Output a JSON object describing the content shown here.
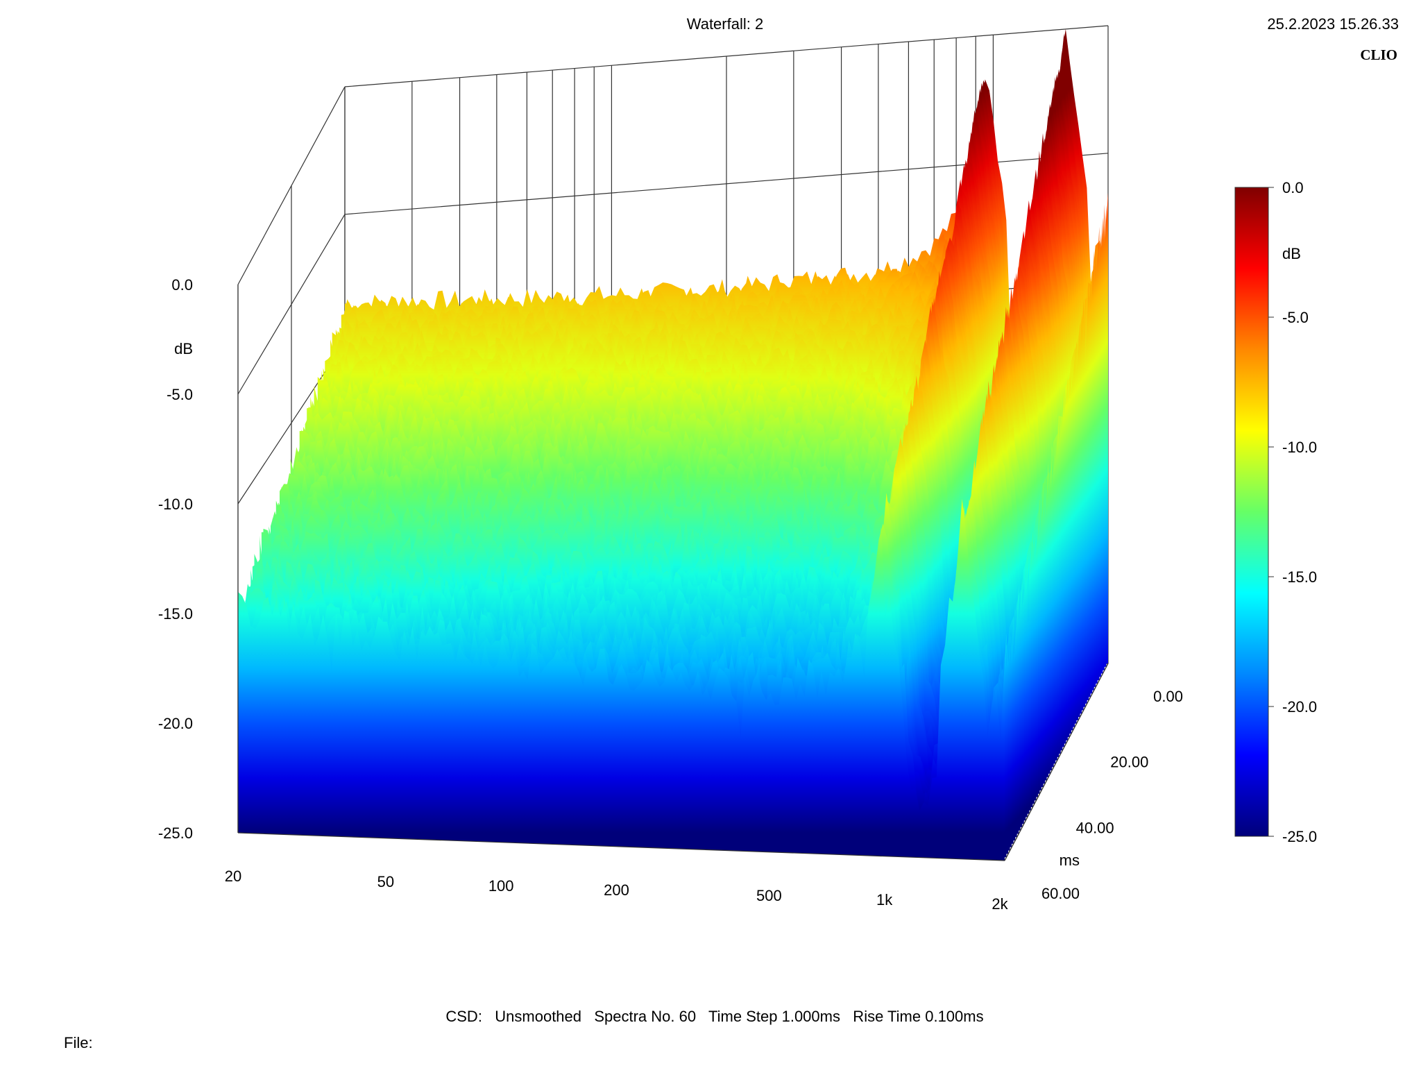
{
  "header": {
    "title": "Waterfall: 2",
    "datetime": "25.2.2023 15.26.33",
    "brand": "CLIO"
  },
  "footer": {
    "settings": "CSD:   Unsmoothed   Spectra No. 60   Time Step 1.000ms   Rise Time 0.100ms",
    "file_label": "File:"
  },
  "chart_data": {
    "type": "waterfall",
    "title": "Waterfall: 2",
    "x_axis": {
      "scale": "log",
      "range": [
        20,
        2000
      ],
      "tick_labels": [
        "20",
        "50",
        "100",
        "200",
        "500",
        "1k",
        "2k"
      ],
      "tick_values": [
        20,
        50,
        100,
        200,
        500,
        1000,
        2000
      ]
    },
    "y_axis": {
      "label": "dB",
      "range": [
        -25,
        0
      ],
      "tick_labels": [
        "0.0",
        "-5.0",
        "-10.0",
        "-15.0",
        "-20.0",
        "-25.0"
      ],
      "tick_values": [
        0,
        -5,
        -10,
        -15,
        -20,
        -25
      ]
    },
    "z_axis": {
      "label": "ms",
      "range": [
        0,
        60
      ],
      "tick_labels": [
        "0.00",
        "20.00",
        "40.00",
        "60.00"
      ],
      "tick_values": [
        0,
        20,
        40,
        60
      ]
    },
    "colorbar": {
      "label": "dB",
      "range": [
        -25,
        0
      ],
      "tick_labels": [
        "0.0",
        "-5.0",
        "-10.0",
        "-15.0",
        "-20.0",
        "-25.0"
      ],
      "tick_values": [
        0,
        -5,
        -10,
        -15,
        -20,
        -25
      ],
      "stops": [
        "#00007a",
        "#0000ff",
        "#0088ff",
        "#00ffff",
        "#66ff66",
        "#ffff00",
        "#ff8800",
        "#ff0000",
        "#800000"
      ]
    },
    "first_spectrum": {
      "freq_hz": [
        20,
        30,
        50,
        100,
        200,
        300,
        500,
        600,
        700,
        800,
        870,
        920,
        960,
        1000,
        1050,
        1100,
        1200,
        1300,
        1400,
        1500,
        1550,
        1600,
        1650,
        1700,
        1750,
        1800,
        1850,
        1900,
        1950,
        2000
      ],
      "level_db": [
        -8.5,
        -8.6,
        -8.8,
        -9.0,
        -9.1,
        -9.0,
        -8.9,
        -8.5,
        -8.0,
        -7.0,
        -6.0,
        -3.0,
        -1.0,
        -4.0,
        -9.5,
        -11.5,
        -13.5,
        -13.0,
        -11.0,
        -3.0,
        0.0,
        -4.5,
        -8.0,
        -9.5,
        -10.0,
        -10.5,
        -9.0,
        -8.5,
        -9.5,
        -6.5
      ]
    },
    "decay_ms": [
      0,
      60
    ],
    "series": [
      {
        "peak_hz": 960,
        "peak_db": -1.0
      },
      {
        "peak_hz": 1550,
        "peak_db": 0.0
      }
    ]
  }
}
